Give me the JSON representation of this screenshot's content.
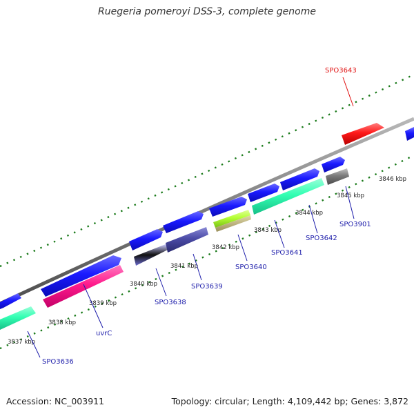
{
  "title": "Ruegeria pomeroyi DSS-3, complete genome",
  "footer": {
    "accession": "Accession: NC_003911",
    "summary": "Topology: circular; Length: 4,109,442 bp; Genes: 3,872"
  },
  "kbp_labels": [
    "3837 kbp",
    "3838 kbp",
    "3839 kbp",
    "3840 kbp",
    "3841 kbp",
    "3842 kbp",
    "3843 kbp",
    "3844 kbp",
    "3845 kbp",
    "3846 kbp"
  ],
  "gene_labels": {
    "spo3636": "SPO3636",
    "uvrc": "uvrC",
    "spo3638": "SPO3638",
    "spo3639": "SPO3639",
    "spo3640": "SPO3640",
    "spo3641": "SPO3641",
    "spo3642": "SPO3642",
    "spo3901": "SPO3901",
    "spo3643": "SPO3643"
  },
  "colors": {
    "forward_strand": "#1a1aff",
    "backbone": "#888888",
    "tick": "#1a7a1a",
    "uvrc": "#ff1a8c",
    "spo3636": "#33ffb3",
    "spo3640": "#b3ff33",
    "spo3642": "#33ffb3",
    "spo3639": "#4b4ba6",
    "spo3901": "#7a7a7a",
    "spo3643": "#ff1a1a",
    "label_gene": "#1c1caa",
    "label_highlight": "#e01010"
  }
}
